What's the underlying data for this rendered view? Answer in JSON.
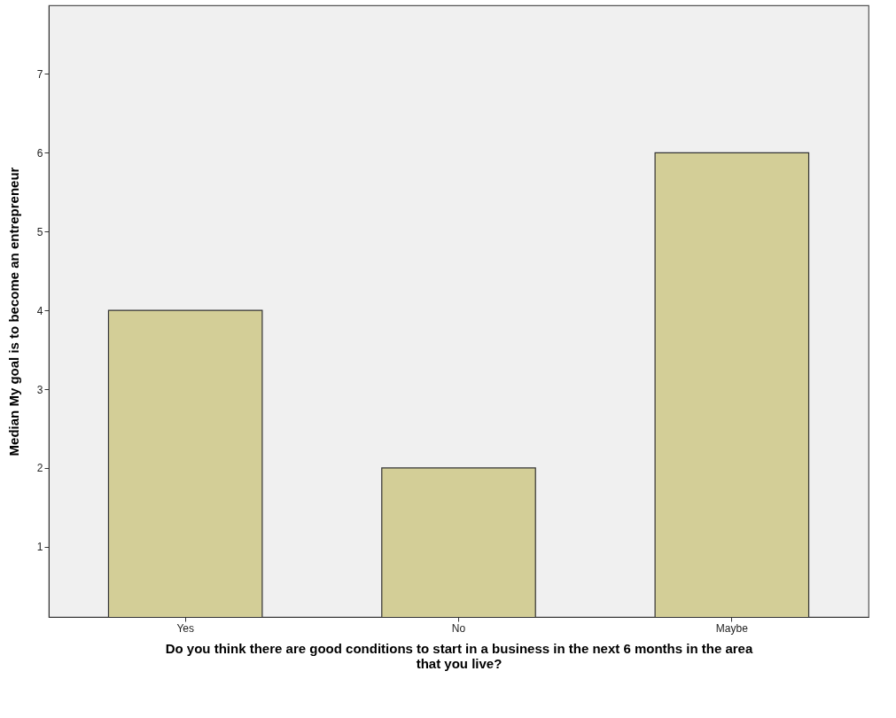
{
  "chart_data": {
    "type": "bar",
    "xlabel": "Do you think there are good conditions to start in a business in the next 6 months in the area that you live?",
    "ylabel": "Median My goal is to become an entrepreneur",
    "categories": [
      "Yes",
      "No",
      "Maybe"
    ],
    "values": [
      4,
      2,
      6
    ],
    "color": "#d3ce97",
    "ylim": [
      0.11,
      7.87
    ],
    "yticks": [
      1,
      2,
      3,
      4,
      5,
      6,
      7
    ],
    "grid": false
  }
}
